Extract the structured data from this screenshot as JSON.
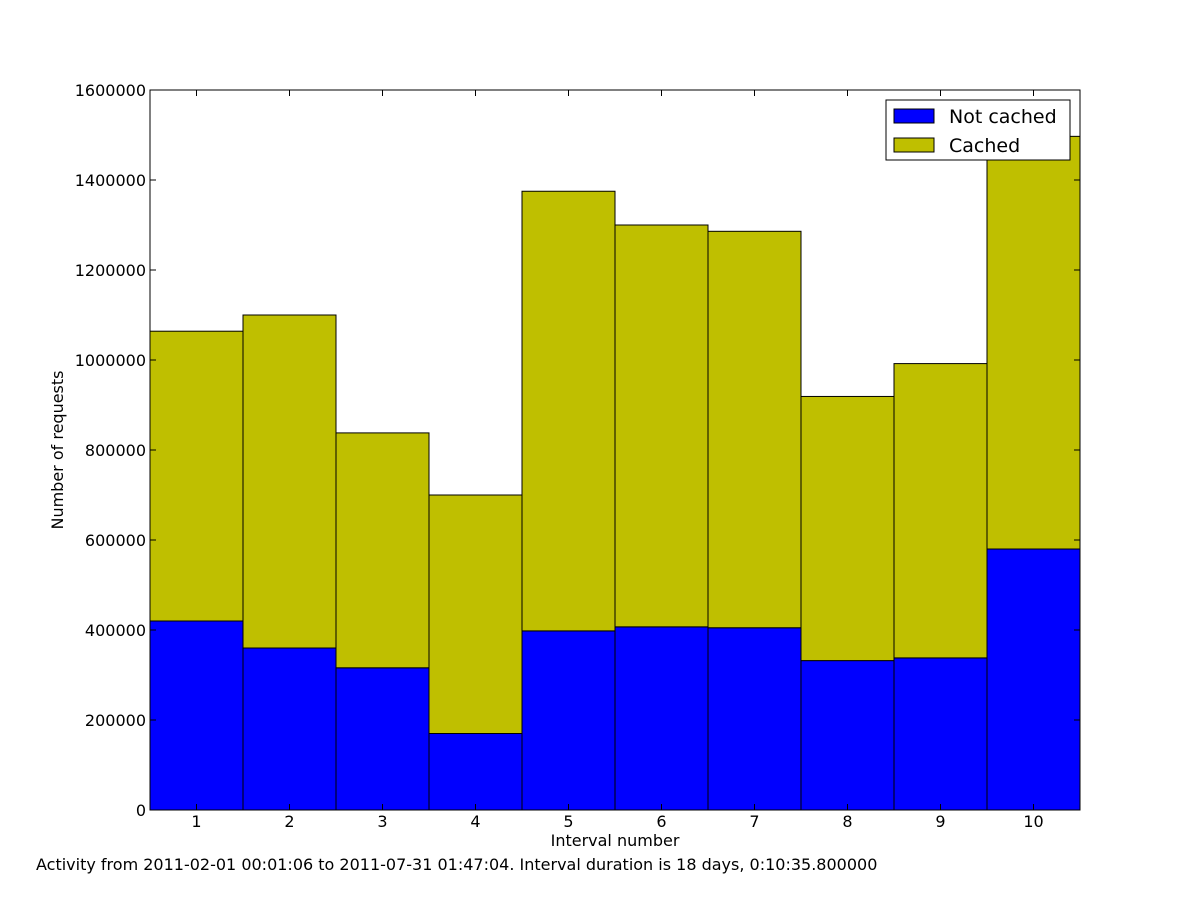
{
  "chart_data": {
    "type": "bar",
    "stacked": true,
    "categories": [
      "1",
      "2",
      "3",
      "4",
      "5",
      "6",
      "7",
      "8",
      "9",
      "10"
    ],
    "series": [
      {
        "name": "Not cached",
        "color": "#0000ff",
        "values": [
          420000,
          360000,
          316000,
          170000,
          398000,
          407000,
          405000,
          332000,
          338000,
          580000
        ]
      },
      {
        "name": "Cached",
        "color": "#bfbf00",
        "values": [
          644000,
          740000,
          522000,
          530000,
          977000,
          893000,
          881000,
          587000,
          654000,
          917000
        ]
      }
    ],
    "xlabel": "Interval number",
    "ylabel": "Number of requests",
    "ylim": [
      0,
      1600000
    ],
    "yticks": [
      0,
      200000,
      400000,
      600000,
      800000,
      1000000,
      1200000,
      1400000,
      1600000
    ],
    "grid": false,
    "legend_position": "top-right",
    "caption": "Activity from 2011-02-01 00:01:06 to 2011-07-31 01:47:04. Interval duration is 18 days, 0:10:35.800000"
  }
}
